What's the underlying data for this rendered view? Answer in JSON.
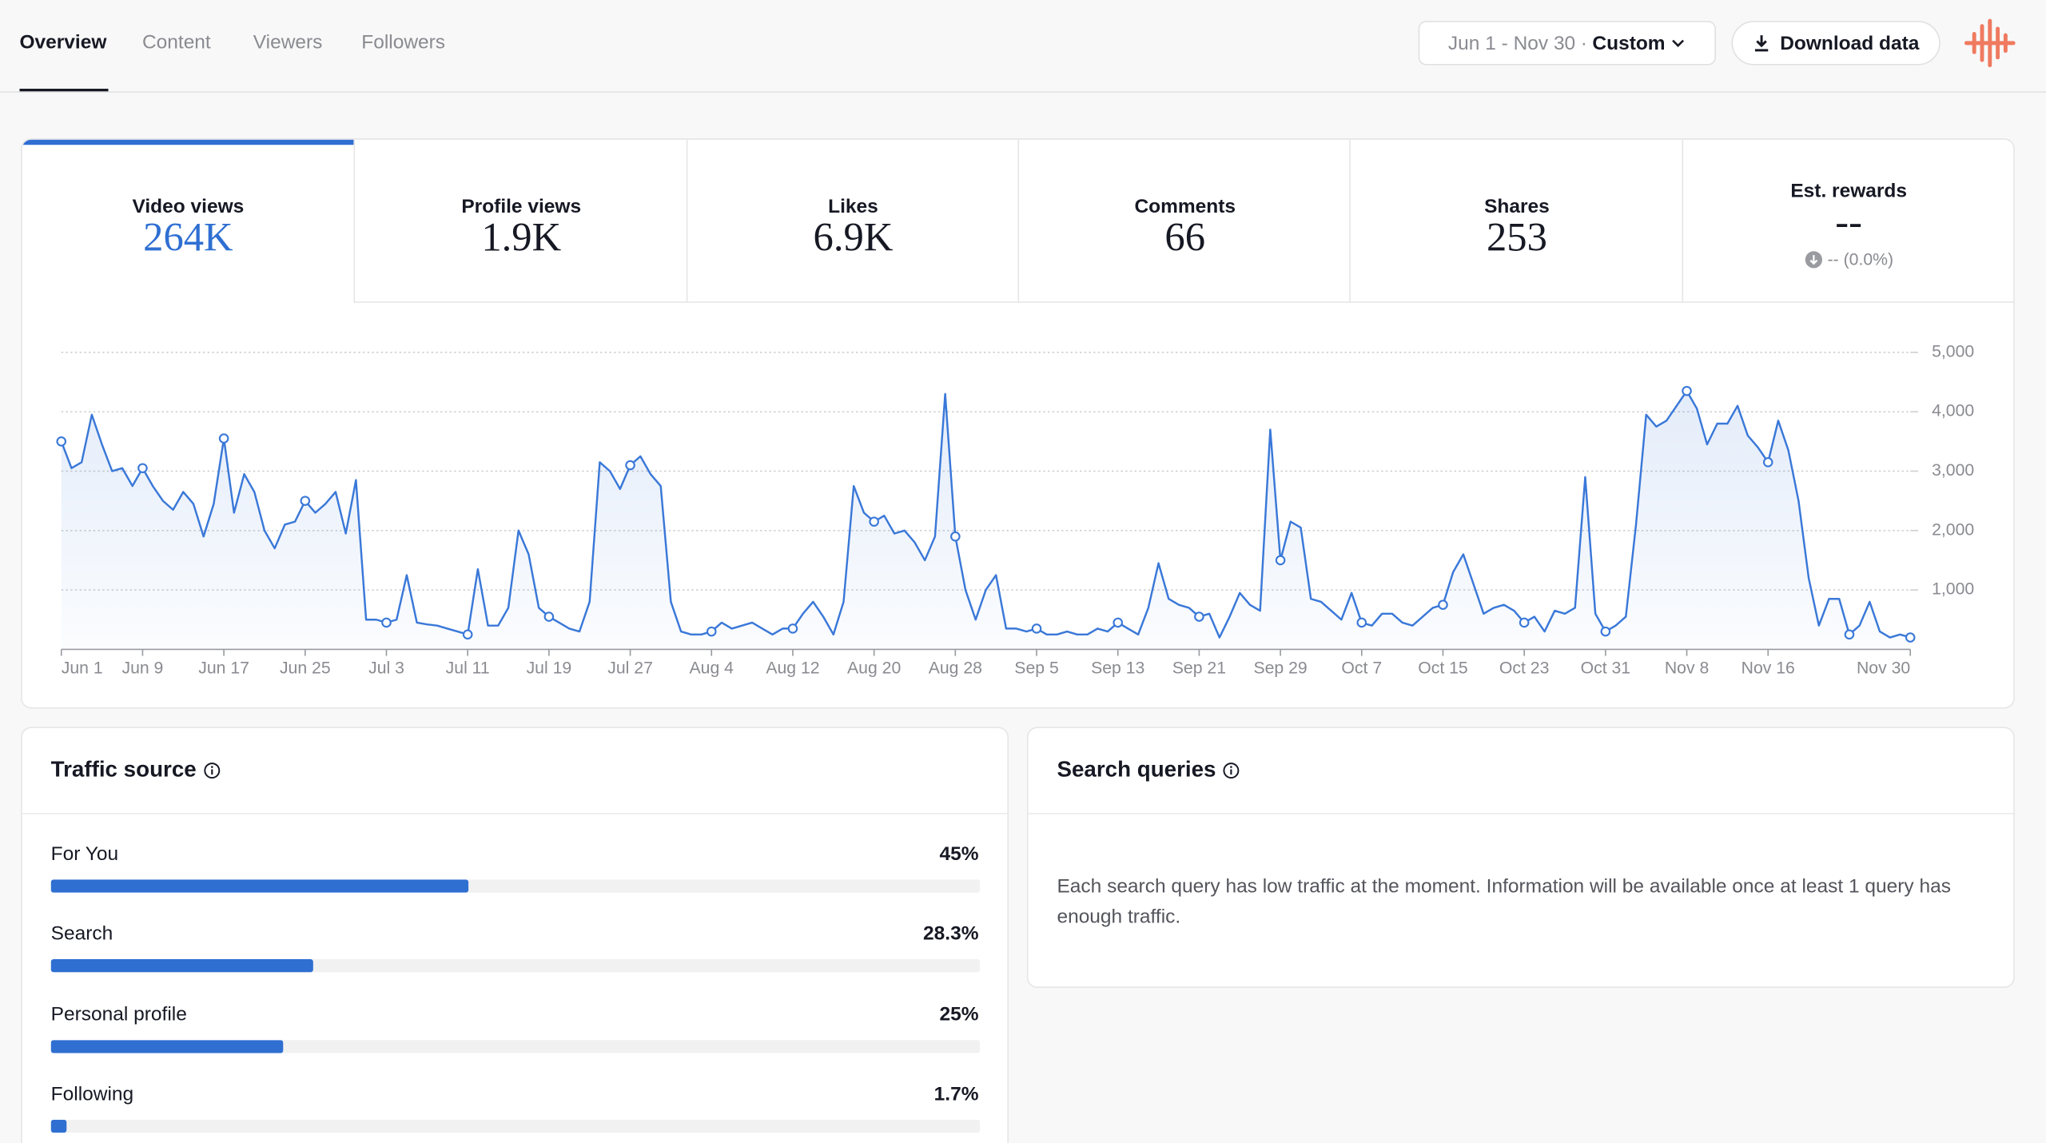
{
  "nav": {
    "tabs": [
      "Overview",
      "Content",
      "Viewers",
      "Followers"
    ],
    "active": 0
  },
  "date_range": {
    "range": "Jun 1 - Nov 30",
    "separator": "·",
    "mode": "Custom"
  },
  "download_button": "Download data",
  "metrics": [
    {
      "label": "Video views",
      "value": "264K"
    },
    {
      "label": "Profile views",
      "value": "1.9K"
    },
    {
      "label": "Likes",
      "value": "6.9K"
    },
    {
      "label": "Comments",
      "value": "66"
    },
    {
      "label": "Shares",
      "value": "253"
    },
    {
      "label": "Est. rewards",
      "value": "--",
      "change": "-- (0.0%)"
    }
  ],
  "chart_data": {
    "type": "line",
    "color": "#3a78d8",
    "grid": true,
    "categories": [
      "Jun 1",
      null,
      null,
      null,
      null,
      null,
      null,
      null,
      "Jun 9",
      null,
      null,
      null,
      null,
      null,
      null,
      null,
      "Jun 17",
      null,
      null,
      null,
      null,
      null,
      null,
      null,
      "Jun 25",
      null,
      null,
      null,
      null,
      null,
      null,
      null,
      "Jul 3",
      null,
      null,
      null,
      null,
      null,
      null,
      null,
      "Jul 11",
      null,
      null,
      null,
      null,
      null,
      null,
      null,
      "Jul 19",
      null,
      null,
      null,
      null,
      null,
      null,
      null,
      "Jul 27",
      null,
      null,
      null,
      null,
      null,
      null,
      null,
      "Aug 4",
      null,
      null,
      null,
      null,
      null,
      null,
      null,
      "Aug 12",
      null,
      null,
      null,
      null,
      null,
      null,
      null,
      "Aug 20",
      null,
      null,
      null,
      null,
      null,
      null,
      null,
      "Aug 28",
      null,
      null,
      null,
      null,
      null,
      null,
      null,
      "Sep 5",
      null,
      null,
      null,
      null,
      null,
      null,
      null,
      "Sep 13",
      null,
      null,
      null,
      null,
      null,
      null,
      null,
      "Sep 21",
      null,
      null,
      null,
      null,
      null,
      null,
      null,
      "Sep 29",
      null,
      null,
      null,
      null,
      null,
      null,
      null,
      "Oct 7",
      null,
      null,
      null,
      null,
      null,
      null,
      null,
      "Oct 15",
      null,
      null,
      null,
      null,
      null,
      null,
      null,
      "Oct 23",
      null,
      null,
      null,
      null,
      null,
      null,
      null,
      "Oct 31",
      null,
      null,
      null,
      null,
      null,
      null,
      null,
      "Nov 8",
      null,
      null,
      null,
      null,
      null,
      null,
      null,
      "Nov 16",
      null,
      null,
      null,
      null,
      null,
      null,
      null,
      null,
      null,
      null,
      null,
      null,
      null,
      "Nov 30"
    ],
    "values": [
      3500,
      3050,
      3150,
      3950,
      3450,
      3000,
      3050,
      2750,
      3050,
      2750,
      2500,
      2350,
      2650,
      2450,
      1900,
      2450,
      3550,
      2300,
      2950,
      2650,
      2000,
      1700,
      2100,
      2150,
      2500,
      2300,
      2450,
      2650,
      1950,
      2850,
      500,
      500,
      450,
      500,
      1250,
      450,
      420,
      400,
      350,
      300,
      250,
      1350,
      400,
      400,
      700,
      2000,
      1600,
      700,
      550,
      450,
      350,
      300,
      800,
      3150,
      3000,
      2700,
      3100,
      3250,
      2950,
      2750,
      800,
      300,
      250,
      250,
      300,
      450,
      350,
      400,
      450,
      350,
      250,
      350,
      350,
      600,
      800,
      550,
      250,
      800,
      2750,
      2300,
      2150,
      2250,
      1950,
      2000,
      1800,
      1500,
      1900,
      4300,
      1900,
      1000,
      500,
      1000,
      1250,
      350,
      350,
      300,
      350,
      250,
      250,
      300,
      250,
      250,
      350,
      300,
      450,
      350,
      250,
      700,
      1450,
      850,
      750,
      700,
      550,
      600,
      200,
      550,
      950,
      750,
      650,
      3700,
      1500,
      2150,
      2050,
      850,
      800,
      650,
      500,
      950,
      450,
      400,
      600,
      600,
      450,
      400,
      550,
      700,
      750,
      1300,
      1600,
      1100,
      600,
      700,
      750,
      650,
      450,
      550,
      300,
      650,
      600,
      700,
      2900,
      600,
      300,
      400,
      550,
      2100,
      3950,
      3750,
      3850,
      4100,
      4350,
      4050,
      3450,
      3800,
      3800,
      4100,
      3600,
      3400,
      3150,
      3850,
      3350,
      2500,
      1200,
      400,
      850,
      850,
      250,
      400,
      800,
      300,
      200,
      250,
      200
    ],
    "ylim": [
      0,
      5000
    ],
    "yticks": [
      {
        "value": 1000,
        "label": "1,000"
      },
      {
        "value": 2000,
        "label": "2,000"
      },
      {
        "value": 3000,
        "label": "3,000"
      },
      {
        "value": 4000,
        "label": "4,000"
      },
      {
        "value": 5000,
        "label": "5,000"
      }
    ]
  },
  "traffic_source": {
    "title": "Traffic source",
    "rows": [
      {
        "label": "For You",
        "value": 45,
        "value_label": "45%"
      },
      {
        "label": "Search",
        "value": 28.3,
        "value_label": "28.3%"
      },
      {
        "label": "Personal profile",
        "value": 25,
        "value_label": "25%"
      },
      {
        "label": "Following",
        "value": 1.7,
        "value_label": "1.7%"
      }
    ]
  },
  "search_queries": {
    "title": "Search queries",
    "message": "Each search query has low traffic at the moment. Information will be available once at least 1 query has enough traffic."
  }
}
